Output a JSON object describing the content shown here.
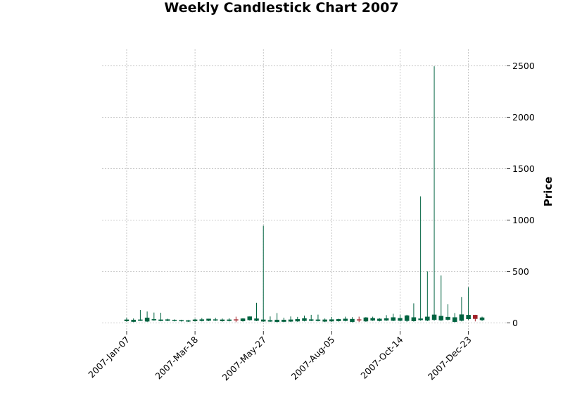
{
  "chart_data": {
    "type": "candlestick",
    "title": "Weekly Candlestick Chart 2007",
    "xlabel": "",
    "ylabel": "Price",
    "ylim": [
      -80,
      2660
    ],
    "y_ticks": [
      0,
      500,
      1000,
      1500,
      2000,
      2500
    ],
    "x_tick_labels": [
      "2007-Jan-07",
      "2007-Mar-18",
      "2007-May-27",
      "2007-Aug-05",
      "2007-Oct-14",
      "2007-Dec-23"
    ],
    "x_tick_indices": [
      0,
      10,
      20,
      30,
      40,
      50
    ],
    "x_range": [
      -3.6,
      55.6
    ],
    "grid": true,
    "colors": {
      "up": "#006340",
      "down": "#a02128",
      "grid": "#b0b0b0"
    },
    "candles": [
      {
        "week": "2007-Jan-07",
        "open": 18,
        "high": 50,
        "low": 10,
        "close": 30
      },
      {
        "week": "2007-Jan-14",
        "open": 12,
        "high": 42,
        "low": 6,
        "close": 28
      },
      {
        "week": "2007-Jan-21",
        "open": 22,
        "high": 125,
        "low": 18,
        "close": 30
      },
      {
        "week": "2007-Jan-28",
        "open": 15,
        "high": 110,
        "low": 8,
        "close": 48
      },
      {
        "week": "2007-Feb-04",
        "open": 26,
        "high": 100,
        "low": 20,
        "close": 34
      },
      {
        "week": "2007-Feb-11",
        "open": 20,
        "high": 98,
        "low": 15,
        "close": 30
      },
      {
        "week": "2007-Feb-18",
        "open": 22,
        "high": 40,
        "low": 16,
        "close": 32
      },
      {
        "week": "2007-Feb-25",
        "open": 20,
        "high": 34,
        "low": 14,
        "close": 26
      },
      {
        "week": "2007-Mar-04",
        "open": 18,
        "high": 30,
        "low": 12,
        "close": 24
      },
      {
        "week": "2007-Mar-11",
        "open": 14,
        "high": 28,
        "low": 8,
        "close": 22
      },
      {
        "week": "2007-Mar-18",
        "open": 18,
        "high": 40,
        "low": 12,
        "close": 30
      },
      {
        "week": "2007-Mar-25",
        "open": 20,
        "high": 46,
        "low": 14,
        "close": 32
      },
      {
        "week": "2007-Apr-01",
        "open": 22,
        "high": 40,
        "low": 16,
        "close": 38
      },
      {
        "week": "2007-Apr-08",
        "open": 24,
        "high": 48,
        "low": 18,
        "close": 32
      },
      {
        "week": "2007-Apr-15",
        "open": 18,
        "high": 42,
        "low": 12,
        "close": 30
      },
      {
        "week": "2007-Apr-22",
        "open": 20,
        "high": 44,
        "low": 14,
        "close": 30
      },
      {
        "week": "2007-Apr-29",
        "open": 32,
        "high": 60,
        "low": 6,
        "close": 28
      },
      {
        "week": "2007-May-06",
        "open": 18,
        "high": 45,
        "low": 12,
        "close": 40
      },
      {
        "week": "2007-May-13",
        "open": 28,
        "high": 62,
        "low": 22,
        "close": 60
      },
      {
        "week": "2007-May-20",
        "open": 22,
        "high": 195,
        "low": 16,
        "close": 40
      },
      {
        "week": "2007-May-27",
        "open": 15,
        "high": 945,
        "low": 10,
        "close": 30
      },
      {
        "week": "2007-Jun-03",
        "open": 14,
        "high": 62,
        "low": 8,
        "close": 24
      },
      {
        "week": "2007-Jun-10",
        "open": 10,
        "high": 95,
        "low": 5,
        "close": 28
      },
      {
        "week": "2007-Jun-17",
        "open": 12,
        "high": 50,
        "low": 6,
        "close": 28
      },
      {
        "week": "2007-Jun-24",
        "open": 14,
        "high": 62,
        "low": 8,
        "close": 30
      },
      {
        "week": "2007-Jul-01",
        "open": 16,
        "high": 58,
        "low": 10,
        "close": 34
      },
      {
        "week": "2007-Jul-08",
        "open": 20,
        "high": 70,
        "low": 14,
        "close": 42
      },
      {
        "week": "2007-Jul-15",
        "open": 22,
        "high": 78,
        "low": 16,
        "close": 32
      },
      {
        "week": "2007-Jul-22",
        "open": 20,
        "high": 80,
        "low": 14,
        "close": 30
      },
      {
        "week": "2007-Jul-29",
        "open": 14,
        "high": 42,
        "low": 8,
        "close": 30
      },
      {
        "week": "2007-Aug-05",
        "open": 16,
        "high": 58,
        "low": 10,
        "close": 32
      },
      {
        "week": "2007-Aug-12",
        "open": 18,
        "high": 40,
        "low": 12,
        "close": 34
      },
      {
        "week": "2007-Aug-19",
        "open": 20,
        "high": 60,
        "low": 14,
        "close": 38
      },
      {
        "week": "2007-Aug-26",
        "open": 10,
        "high": 55,
        "low": 5,
        "close": 36
      },
      {
        "week": "2007-Sep-02",
        "open": 32,
        "high": 60,
        "low": 8,
        "close": 28
      },
      {
        "week": "2007-Sep-09",
        "open": 16,
        "high": 56,
        "low": 10,
        "close": 50
      },
      {
        "week": "2007-Sep-16",
        "open": 24,
        "high": 60,
        "low": 18,
        "close": 44
      },
      {
        "week": "2007-Sep-23",
        "open": 20,
        "high": 45,
        "low": 14,
        "close": 38
      },
      {
        "week": "2007-Sep-30",
        "open": 24,
        "high": 75,
        "low": 18,
        "close": 42
      },
      {
        "week": "2007-Oct-07",
        "open": 22,
        "high": 88,
        "low": 16,
        "close": 52
      },
      {
        "week": "2007-Oct-14",
        "open": 22,
        "high": 80,
        "low": 14,
        "close": 44
      },
      {
        "week": "2007-Oct-21",
        "open": 20,
        "high": 78,
        "low": 10,
        "close": 70
      },
      {
        "week": "2007-Oct-28",
        "open": 18,
        "high": 190,
        "low": 12,
        "close": 52
      },
      {
        "week": "2007-Nov-04",
        "open": 28,
        "high": 1230,
        "low": 20,
        "close": 40
      },
      {
        "week": "2007-Nov-11",
        "open": 24,
        "high": 500,
        "low": 16,
        "close": 58
      },
      {
        "week": "2007-Nov-18",
        "open": 30,
        "high": 2495,
        "low": 20,
        "close": 78
      },
      {
        "week": "2007-Nov-25",
        "open": 26,
        "high": 460,
        "low": 18,
        "close": 65
      },
      {
        "week": "2007-Dec-02",
        "open": 32,
        "high": 180,
        "low": 22,
        "close": 56
      },
      {
        "week": "2007-Dec-09",
        "open": 10,
        "high": 95,
        "low": 5,
        "close": 52
      },
      {
        "week": "2007-Dec-16",
        "open": 22,
        "high": 250,
        "low": 14,
        "close": 80
      },
      {
        "week": "2007-Dec-23",
        "open": 38,
        "high": 345,
        "low": 28,
        "close": 75
      },
      {
        "week": "2007-Dec-30",
        "open": 75,
        "high": 78,
        "low": 14,
        "close": 40
      },
      {
        "week": "2008-Jan-06",
        "open": 28,
        "high": 60,
        "low": 18,
        "close": 50
      }
    ]
  }
}
